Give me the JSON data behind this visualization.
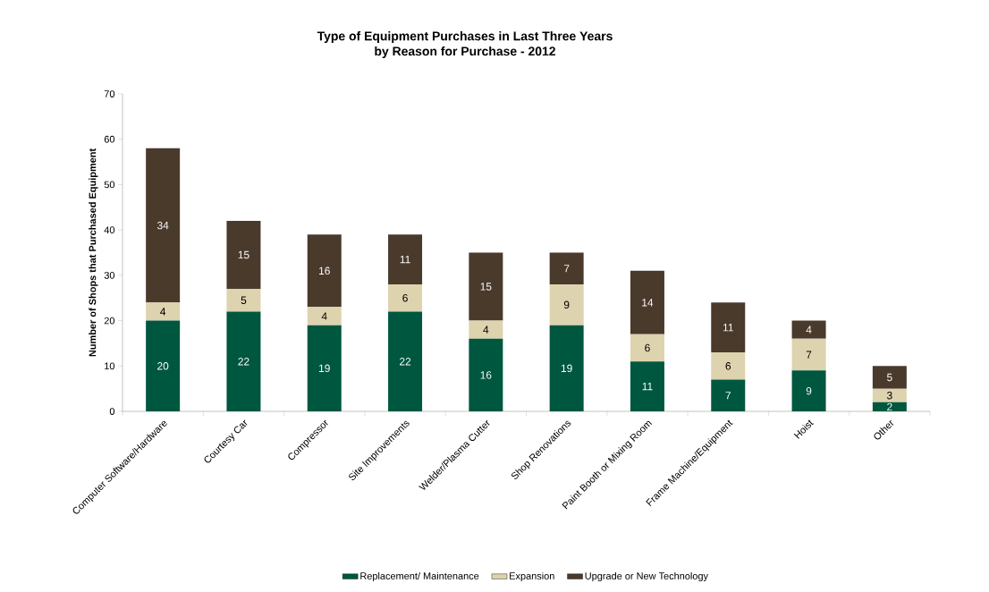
{
  "chart_data": {
    "type": "bar",
    "title": "Type of Equipment Purchases in Last Three Years\nby Reason for Purchase - 2012",
    "ylabel": "Number of Shops that Purchased Equipment",
    "categories": [
      "Computer Software/Hardware",
      "Courtesy Car",
      "Compressor",
      "Site Improvements",
      "Welder/Plasma Cutter",
      "Shop Renovations",
      "Paint Booth or Mixing Room",
      "Frame Machine/Equipment",
      "Hoist",
      "Other"
    ],
    "stacked": true,
    "series": [
      {
        "name": "Replacement/ Maintenance",
        "color": "#00573f",
        "values": [
          20,
          22,
          19,
          22,
          16,
          19,
          11,
          7,
          9,
          2
        ]
      },
      {
        "name": "Expansion",
        "color": "#ddd3ae",
        "values": [
          4,
          5,
          4,
          6,
          4,
          9,
          6,
          6,
          7,
          3
        ]
      },
      {
        "name": "Upgrade or New Technology",
        "color": "#4a3a2c",
        "values": [
          34,
          15,
          16,
          11,
          15,
          7,
          14,
          11,
          4,
          5
        ]
      }
    ],
    "ylim": [
      0,
      70
    ],
    "yticks": [
      0,
      10,
      20,
      30,
      40,
      50,
      60,
      70
    ],
    "data_labels": true,
    "grid": false,
    "legend": "bottom"
  }
}
